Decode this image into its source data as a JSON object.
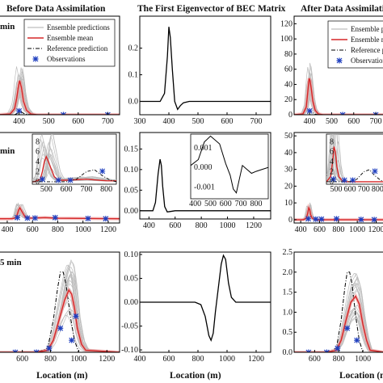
{
  "column_titles": [
    "Before Data Assimilation",
    "The First Eigenvector of BEC Matrix",
    "After Data Assimilation"
  ],
  "legend_left": [
    "Ensemble predictions",
    "Ensemble mean",
    "Reference prediction",
    "Observations"
  ],
  "legend_right": [
    "Ensemble p",
    "Ensemble m",
    "Reference p",
    "Observation"
  ],
  "row_tags": [
    "min",
    "min",
    "5 min"
  ],
  "xlabel": "Location (m)",
  "colors": {
    "ensemble": "#bdbdbd",
    "mean": "#d62728",
    "reference": "#000000",
    "observation": "#1f3fbf",
    "mean_band": "#f2a0a0"
  },
  "chart_data": [
    {
      "panel": "row1-left",
      "type": "line",
      "xticks": [
        400,
        500,
        600,
        700
      ],
      "xlim": [
        330,
        740
      ],
      "title": "Before Data Assimilation",
      "series": [
        {
          "name": "Ensemble mean",
          "x": [
            330,
            370,
            385,
            392,
            398,
            402,
            408,
            415,
            425,
            440,
            460,
            740
          ],
          "y": [
            0,
            1,
            8,
            22,
            38,
            45,
            36,
            18,
            6,
            1,
            0,
            0
          ]
        },
        {
          "name": "Reference prediction",
          "x": [
            330,
            385,
            395,
            402,
            410,
            420,
            440,
            740
          ],
          "y": [
            0,
            0,
            2,
            5,
            3,
            1,
            0,
            0
          ]
        },
        {
          "name": "Observations",
          "x": [
            400,
            550,
            700
          ],
          "y": [
            5,
            0,
            0
          ]
        }
      ]
    },
    {
      "panel": "row1-middle",
      "type": "line",
      "xticks": [
        300,
        400,
        500,
        600,
        700
      ],
      "xlim": [
        300,
        750
      ],
      "yticks": [
        0.0,
        0.1,
        0.2
      ],
      "ylim": [
        -0.05,
        0.32
      ],
      "series": [
        {
          "name": "",
          "x": [
            300,
            370,
            385,
            395,
            400,
            405,
            412,
            420,
            430,
            440,
            450,
            470,
            500,
            550,
            750
          ],
          "y": [
            0,
            0,
            0.03,
            0.17,
            0.28,
            0.24,
            0.12,
            0.0,
            -0.03,
            -0.015,
            -0.005,
            0,
            0,
            0,
            0
          ]
        }
      ]
    },
    {
      "panel": "row1-right",
      "type": "line",
      "xticks": [
        400,
        500,
        600,
        700
      ],
      "xlim": [
        330,
        740
      ],
      "yticks": [
        0,
        20,
        40,
        60,
        80,
        100,
        120
      ],
      "ylim": [
        0,
        130
      ],
      "title": "After Data Assimilation",
      "series": [
        {
          "name": "Ensemble mean",
          "x": [
            330,
            370,
            385,
            392,
            398,
            402,
            408,
            415,
            425,
            440,
            460,
            740
          ],
          "y": [
            0,
            1,
            10,
            30,
            48,
            45,
            34,
            18,
            6,
            1,
            0,
            0
          ]
        },
        {
          "name": "Reference prediction",
          "x": [
            330,
            385,
            395,
            402,
            410,
            420,
            440,
            740
          ],
          "y": [
            0,
            0,
            3,
            6,
            4,
            1,
            0,
            0
          ]
        },
        {
          "name": "Observations",
          "x": [
            400,
            550,
            700
          ],
          "y": [
            5,
            0,
            0
          ]
        }
      ]
    },
    {
      "panel": "row2-left",
      "type": "line",
      "xticks": [
        400,
        600,
        800,
        1000,
        1200
      ],
      "xlim": [
        330,
        1290
      ],
      "inset": {
        "xticks": [
          500,
          600,
          700,
          800
        ],
        "yticks": [
          0,
          2,
          4,
          6,
          8
        ],
        "xlim": [
          430,
          850
        ],
        "ylim": [
          -0.5,
          9.5
        ]
      },
      "series": [
        {
          "name": "Ensemble mean",
          "x": [
            330,
            440,
            470,
            480,
            490,
            500,
            520,
            540,
            560,
            600,
            700,
            800,
            1290
          ],
          "y": [
            0,
            0,
            0.5,
            2,
            4,
            5,
            3,
            1,
            0.3,
            0.3,
            0.5,
            0.2,
            0
          ]
        },
        {
          "name": "Observations",
          "x": [
            480,
            560,
            620,
            780,
            1040,
            1180
          ],
          "y": [
            0.5,
            0.3,
            0.3,
            0.5,
            0.1,
            0
          ]
        }
      ]
    },
    {
      "panel": "row2-middle",
      "type": "line",
      "xticks": [
        400,
        600,
        800,
        1000,
        1200
      ],
      "xlim": [
        330,
        1330
      ],
      "yticks": [
        0.0,
        0.05,
        0.1,
        0.15
      ],
      "ylim": [
        -0.02,
        0.19
      ],
      "inset": {
        "xticks": [
          400,
          500,
          600,
          700,
          800
        ],
        "yticks": [
          -0.001,
          0.0,
          0.001
        ],
        "xlim": [
          370,
          880
        ],
        "ylim": [
          -0.0016,
          0.0017
        ]
      },
      "series": [
        {
          "name": "",
          "x": [
            330,
            430,
            450,
            470,
            485,
            495,
            505,
            520,
            540,
            560,
            600,
            800,
            1330
          ],
          "y": [
            0,
            0,
            0.02,
            0.09,
            0.125,
            0.11,
            0.06,
            0.01,
            -0.003,
            -0.002,
            0,
            0,
            0
          ]
        }
      ]
    },
    {
      "panel": "row2-right",
      "type": "line",
      "xticks": [
        400,
        600,
        800,
        1000,
        1200
      ],
      "xlim": [
        330,
        1290
      ],
      "yticks": [
        0,
        10,
        20,
        30,
        40,
        50
      ],
      "ylim": [
        -2,
        52
      ],
      "inset": {
        "xticks": [
          500,
          600,
          700,
          800
        ],
        "yticks": [
          0,
          2,
          4,
          6,
          8
        ],
        "xlim": [
          430,
          850
        ],
        "ylim": [
          -0.5,
          9.5
        ]
      },
      "series": [
        {
          "name": "Ensemble mean",
          "x": [
            330,
            430,
            460,
            475,
            485,
            495,
            505,
            520,
            540,
            560,
            1290
          ],
          "y": [
            0,
            0,
            1,
            4,
            7,
            6,
            3,
            1,
            0.3,
            0,
            0
          ]
        },
        {
          "name": "Observations",
          "x": [
            480,
            560,
            620,
            780,
            1040,
            1180
          ],
          "y": [
            0.5,
            0.3,
            0.3,
            0.5,
            0.1,
            0
          ]
        }
      ]
    },
    {
      "panel": "row3-left",
      "type": "line",
      "xticks": [
        600,
        800,
        1000,
        1200
      ],
      "xlim": [
        430,
        1290
      ],
      "series": [
        {
          "name": "Reference prediction",
          "x": [
            430,
            700,
            780,
            820,
            850,
            870,
            890,
            910,
            940,
            970,
            1000,
            1290
          ],
          "y": [
            0,
            0,
            0.1,
            0.8,
            1.6,
            2.0,
            2.0,
            1.7,
            0.9,
            0.3,
            0,
            0
          ]
        },
        {
          "name": "Ensemble mean",
          "x": [
            430,
            700,
            780,
            820,
            860,
            900,
            930,
            950,
            970,
            990,
            1020,
            1050,
            1290
          ],
          "y": [
            0,
            0,
            0.05,
            0.3,
            0.8,
            1.3,
            1.55,
            1.45,
            1.1,
            0.6,
            0.2,
            0.05,
            0
          ]
        },
        {
          "name": "Observations",
          "x": [
            550,
            700,
            790,
            870,
            950,
            980
          ],
          "y": [
            0,
            0,
            0.1,
            0.6,
            0.3,
            0.9
          ]
        }
      ]
    },
    {
      "panel": "row3-middle",
      "type": "line",
      "xticks": [
        400,
        600,
        800,
        1000,
        1200
      ],
      "xlim": [
        400,
        1300
      ],
      "yticks": [
        -0.1,
        -0.05,
        0.0,
        0.05,
        0.1
      ],
      "ylim": [
        -0.105,
        0.105
      ],
      "series": [
        {
          "name": "",
          "x": [
            400,
            780,
            820,
            850,
            875,
            890,
            905,
            920,
            940,
            960,
            975,
            990,
            1010,
            1030,
            1060,
            1300
          ],
          "y": [
            0,
            0,
            -0.005,
            -0.03,
            -0.07,
            -0.08,
            -0.065,
            -0.02,
            0.03,
            0.08,
            0.098,
            0.09,
            0.04,
            0.01,
            0,
            0
          ]
        }
      ]
    },
    {
      "panel": "row3-right",
      "type": "line",
      "xticks": [
        600,
        800,
        1000
      ],
      "xlim": [
        430,
        1180
      ],
      "yticks": [
        0.0,
        0.5,
        1.0,
        1.5,
        2.0,
        2.5
      ],
      "ylim": [
        0,
        2.5
      ],
      "series": [
        {
          "name": "Reference prediction",
          "x": [
            430,
            700,
            780,
            820,
            850,
            870,
            890,
            910,
            940,
            970,
            1000,
            1180
          ],
          "y": [
            0,
            0,
            0.1,
            0.8,
            1.6,
            2.0,
            2.0,
            1.7,
            0.9,
            0.3,
            0,
            0
          ]
        },
        {
          "name": "Ensemble mean",
          "x": [
            430,
            700,
            780,
            820,
            860,
            900,
            940,
            970,
            1000,
            1030,
            1060,
            1180
          ],
          "y": [
            0,
            0,
            0.05,
            0.3,
            0.8,
            1.25,
            1.4,
            1.2,
            0.7,
            0.3,
            0.05,
            0
          ]
        },
        {
          "name": "Observations",
          "x": [
            550,
            700,
            790,
            870,
            950
          ],
          "y": [
            0,
            0,
            0.1,
            0.6,
            0.3
          ]
        }
      ]
    }
  ]
}
